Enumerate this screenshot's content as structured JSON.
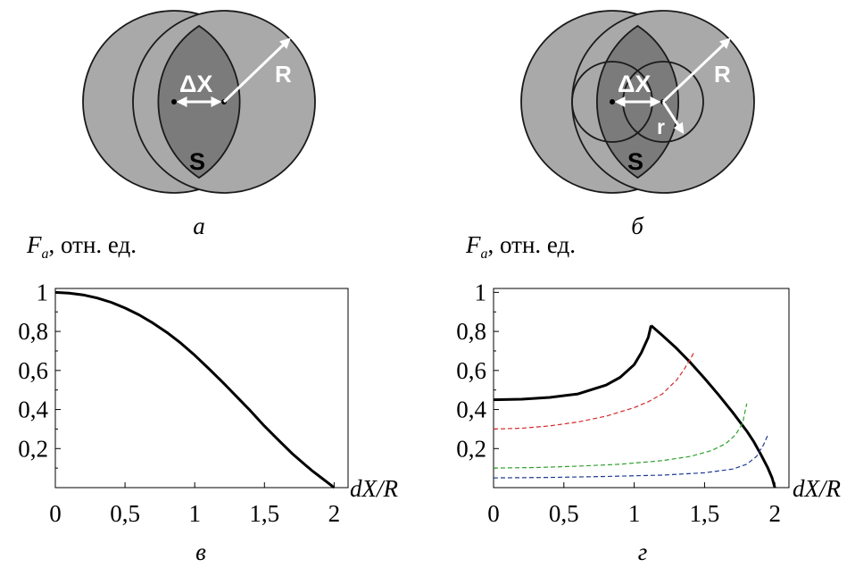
{
  "diagram_a": {
    "panel_letter": "а",
    "dx_label": "ΔX",
    "radius_label": "R",
    "area_label": "S"
  },
  "diagram_b": {
    "panel_letter": "б",
    "dx_label": "ΔX",
    "radius_label": "R",
    "small_radius_label": "r",
    "area_label": "S"
  },
  "chart_data": [
    {
      "type": "line",
      "panel_letter": "в",
      "ylabel": "F_a, отн. ед.",
      "xlabel": "dX/R",
      "xlim": [
        0,
        2.1
      ],
      "ylim": [
        0,
        1.02
      ],
      "x_ticks": [
        "0",
        "0,5",
        "1",
        "1,5",
        "2"
      ],
      "x_tick_values": [
        0,
        0.5,
        1,
        1.5,
        2
      ],
      "y_ticks": [
        "0,2",
        "0,4",
        "0,6",
        "0,8",
        "1"
      ],
      "y_tick_values": [
        0.2,
        0.4,
        0.6,
        0.8,
        1
      ],
      "grid": false,
      "series": [
        {
          "color": "#000000",
          "dash": "solid",
          "x": [
            0,
            0.1,
            0.2,
            0.3,
            0.4,
            0.5,
            0.6,
            0.7,
            0.8,
            0.9,
            1.0,
            1.1,
            1.2,
            1.3,
            1.4,
            1.5,
            1.6,
            1.7,
            1.8,
            1.85,
            1.9,
            1.95,
            1.98,
            2.0
          ],
          "y": [
            1.0,
            0.996,
            0.987,
            0.971,
            0.949,
            0.92,
            0.885,
            0.843,
            0.795,
            0.74,
            0.678,
            0.61,
            0.54,
            0.467,
            0.393,
            0.315,
            0.244,
            0.174,
            0.112,
            0.082,
            0.055,
            0.028,
            0.011,
            0.0
          ]
        }
      ]
    },
    {
      "type": "line",
      "panel_letter": "г",
      "ylabel": "F_a, отн. ед.",
      "xlabel": "dX/R",
      "xlim": [
        0,
        2.1
      ],
      "ylim": [
        0,
        1.02
      ],
      "x_ticks": [
        "0",
        "0,5",
        "1",
        "1,5",
        "2"
      ],
      "x_tick_values": [
        0,
        0.5,
        1,
        1.5,
        2
      ],
      "y_ticks": [
        "0,2",
        "0,4",
        "0,6",
        "0,8",
        "1"
      ],
      "y_tick_values": [
        0.2,
        0.4,
        0.6,
        0.8,
        1
      ],
      "grid": false,
      "series": [
        {
          "color": "#000000",
          "dash": "solid",
          "x": [
            0,
            0.2,
            0.4,
            0.6,
            0.8,
            0.9,
            1.0,
            1.05,
            1.1,
            1.12
          ],
          "y": [
            0.45,
            0.453,
            0.462,
            0.48,
            0.525,
            0.565,
            0.63,
            0.69,
            0.77,
            0.83
          ]
        },
        {
          "color": "#000000",
          "dash": "solid",
          "x": [
            1.12,
            1.2,
            1.3,
            1.4,
            1.5,
            1.6,
            1.7,
            1.8,
            1.85,
            1.9,
            1.95,
            1.98,
            2.0
          ],
          "y": [
            0.83,
            0.78,
            0.714,
            0.64,
            0.56,
            0.475,
            0.385,
            0.29,
            0.235,
            0.17,
            0.1,
            0.05,
            0.0
          ]
        },
        {
          "color": "#d62728",
          "dash": "dashed",
          "x": [
            0,
            0.2,
            0.4,
            0.6,
            0.8,
            1.0,
            1.1,
            1.2,
            1.3,
            1.35,
            1.4,
            1.43
          ],
          "y": [
            0.3,
            0.304,
            0.316,
            0.336,
            0.366,
            0.41,
            0.44,
            0.48,
            0.55,
            0.6,
            0.66,
            0.7
          ]
        },
        {
          "color": "#2ca02c",
          "dash": "dashed",
          "x": [
            0,
            0.3,
            0.6,
            0.9,
            1.2,
            1.4,
            1.55,
            1.65,
            1.72,
            1.77,
            1.8
          ],
          "y": [
            0.1,
            0.103,
            0.11,
            0.12,
            0.138,
            0.16,
            0.19,
            0.225,
            0.27,
            0.33,
            0.43
          ]
        },
        {
          "color": "#1f3a93",
          "dash": "dashed",
          "x": [
            0,
            0.4,
            0.8,
            1.2,
            1.5,
            1.7,
            1.8,
            1.87,
            1.92,
            1.95
          ],
          "y": [
            0.05,
            0.052,
            0.057,
            0.064,
            0.076,
            0.095,
            0.12,
            0.16,
            0.22,
            0.27
          ]
        }
      ]
    }
  ]
}
